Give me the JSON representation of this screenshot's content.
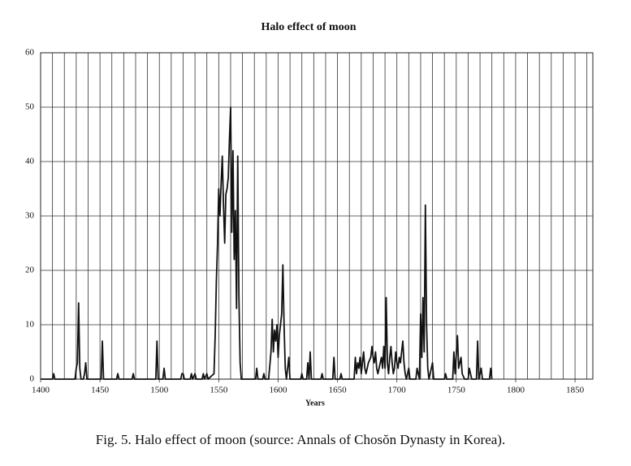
{
  "chart_data": {
    "type": "line",
    "title": "Halo effect of moon",
    "xlabel": "Years",
    "caption": "Fig. 5. Halo effect of moon (source: Annals of Chosŏn Dynasty in Korea).",
    "xlim": [
      1400,
      1865
    ],
    "ylim": [
      0,
      60
    ],
    "xticks": [
      1400,
      1450,
      1500,
      1550,
      1600,
      1650,
      1700,
      1750,
      1800,
      1850
    ],
    "yticks": [
      0,
      10,
      20,
      30,
      40,
      50,
      60
    ],
    "xgrid": [
      1410,
      1420,
      1430,
      1440,
      1450,
      1460,
      1470,
      1480,
      1490,
      1500,
      1510,
      1520,
      1530,
      1540,
      1550,
      1560,
      1570,
      1580,
      1590,
      1600,
      1610,
      1620,
      1630,
      1640,
      1650,
      1660,
      1670,
      1680,
      1690,
      1700,
      1710,
      1720,
      1730,
      1740,
      1750,
      1760,
      1770,
      1780,
      1790,
      1800,
      1810,
      1820,
      1830,
      1840,
      1850,
      1860
    ],
    "grid": true,
    "color": "#111111",
    "x": [
      1400,
      1410,
      1411,
      1412,
      1429,
      1430,
      1431,
      1432,
      1433,
      1434,
      1436,
      1437,
      1438,
      1439,
      1451,
      1452,
      1453,
      1464,
      1465,
      1466,
      1477,
      1478,
      1479,
      1497,
      1498,
      1499,
      1503,
      1504,
      1505,
      1518,
      1519,
      1520,
      1521,
      1526,
      1527,
      1528,
      1530,
      1531,
      1536,
      1537,
      1538,
      1540,
      1541,
      1546,
      1547,
      1548,
      1549,
      1550,
      1551,
      1552,
      1553,
      1554,
      1555,
      1556,
      1557,
      1558,
      1559,
      1560,
      1561,
      1562,
      1563,
      1564,
      1565,
      1566,
      1567,
      1568,
      1569,
      1581,
      1582,
      1583,
      1587,
      1588,
      1589,
      1592,
      1594,
      1595,
      1596,
      1597,
      1598,
      1599,
      1600,
      1601,
      1603,
      1604,
      1605,
      1606,
      1607,
      1609,
      1610,
      1619,
      1620,
      1621,
      1624,
      1625,
      1626,
      1627,
      1628,
      1636,
      1637,
      1638,
      1646,
      1647,
      1648,
      1652,
      1653,
      1654,
      1664,
      1665,
      1666,
      1667,
      1668,
      1669,
      1670,
      1671,
      1672,
      1673,
      1674,
      1676,
      1678,
      1679,
      1680,
      1681,
      1682,
      1683,
      1684,
      1686,
      1687,
      1688,
      1689,
      1690,
      1691,
      1692,
      1693,
      1694,
      1695,
      1696,
      1697,
      1698,
      1699,
      1700,
      1701,
      1702,
      1703,
      1704,
      1705,
      1706,
      1707,
      1708,
      1710,
      1711,
      1716,
      1717,
      1718,
      1719,
      1720,
      1721,
      1722,
      1723,
      1724,
      1725,
      1726,
      1727,
      1730,
      1731,
      1740,
      1741,
      1742,
      1747,
      1748,
      1749,
      1751,
      1752,
      1754,
      1755,
      1757,
      1760,
      1761,
      1762,
      1763,
      1767,
      1768,
      1769,
      1771,
      1772,
      1778,
      1779,
      1780
    ],
    "values": [
      0,
      0,
      1,
      0,
      0,
      2,
      3,
      14,
      2,
      0,
      0,
      1,
      3,
      0,
      0,
      7,
      0,
      0,
      1,
      0,
      0,
      1,
      0,
      0,
      7,
      0,
      0,
      2,
      0,
      0,
      1,
      1,
      0,
      0,
      1,
      0,
      1,
      0,
      0,
      1,
      0,
      1,
      0,
      1,
      8,
      18,
      25,
      35,
      30,
      36,
      41,
      32,
      25,
      34,
      35,
      37,
      44,
      50,
      27,
      42,
      22,
      31,
      13,
      41,
      15,
      3,
      0,
      0,
      2,
      0,
      0,
      1,
      0,
      0,
      5,
      11,
      5,
      9,
      7,
      10,
      4,
      8,
      12,
      21,
      10,
      2,
      0,
      4,
      0,
      0,
      1,
      0,
      0,
      3,
      0,
      5,
      0,
      0,
      1,
      0,
      0,
      4,
      0,
      0,
      1,
      0,
      0,
      4,
      1,
      3,
      2,
      4,
      1,
      3,
      5,
      2,
      1,
      3,
      4,
      6,
      4,
      3,
      5,
      2,
      1,
      3,
      4,
      2,
      6,
      2,
      15,
      3,
      1,
      4,
      6,
      3,
      1,
      2,
      5,
      3,
      2,
      4,
      3,
      5,
      7,
      3,
      1,
      0,
      2,
      0,
      0,
      2,
      1,
      0,
      12,
      4,
      15,
      5,
      32,
      10,
      2,
      0,
      3,
      0,
      0,
      1,
      0,
      0,
      5,
      1,
      8,
      2,
      4,
      1,
      0,
      0,
      2,
      1,
      0,
      0,
      7,
      0,
      2,
      0,
      0,
      2,
      0
    ]
  }
}
